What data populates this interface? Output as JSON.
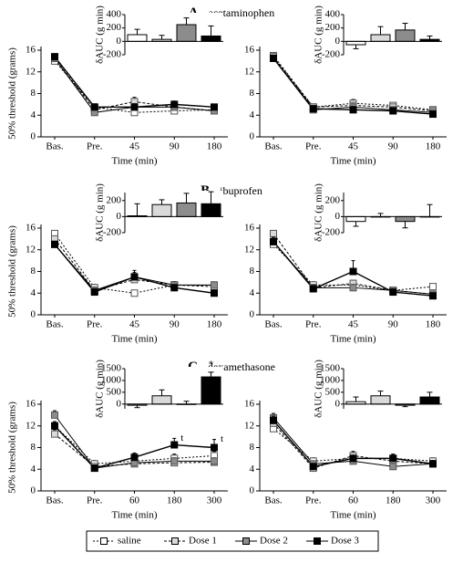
{
  "legend": [
    {
      "name": "saline",
      "color": "#ffffff",
      "dash": "2,2"
    },
    {
      "name": "Dose 1",
      "color": "#d9d9d9",
      "dash": "3,2"
    },
    {
      "name": "Dose 2",
      "color": "#8c8c8c",
      "dash": "none"
    },
    {
      "name": "Dose 3",
      "color": "#000000",
      "dash": "none"
    }
  ],
  "chart_data": [
    {
      "type": "line",
      "panel_label": "A",
      "title": "- acetaminophen",
      "xlabel": "Time (min)",
      "ylabel": "50% threshold (grams)",
      "categories": [
        "Bas.",
        "Pre.",
        "45",
        "90",
        "180"
      ],
      "ylim": [
        0,
        16
      ],
      "yticks": [
        0,
        4,
        8,
        12,
        16
      ],
      "series": [
        {
          "values": [
            14,
            5.5,
            4.5,
            4.8,
            5.0
          ],
          "errors": [
            0.5,
            0.6,
            0.6,
            0.5,
            0.5
          ]
        },
        {
          "values": [
            14.5,
            5,
            6.5,
            5.5,
            4.8
          ],
          "errors": [
            0.5,
            0.5,
            0.8,
            0.6,
            0.5
          ]
        },
        {
          "values": [
            14.5,
            4.5,
            5.5,
            5.5,
            4.8
          ],
          "errors": [
            0.5,
            0.5,
            0.6,
            0.5,
            0.5
          ]
        },
        {
          "values": [
            14.8,
            5.5,
            5.5,
            6,
            5.5
          ],
          "errors": [
            0.5,
            0.5,
            0.6,
            0.6,
            0.5
          ]
        }
      ],
      "inset": {
        "type": "bar",
        "ylabel": "δAUC (g min)",
        "ylim": [
          -200,
          400
        ],
        "yticks": [
          -200,
          0,
          200,
          400
        ],
        "values": [
          100,
          30,
          250,
          80
        ],
        "errors": [
          80,
          60,
          100,
          150
        ]
      }
    },
    {
      "type": "line",
      "xlabel": "Time (min)",
      "categories": [
        "Bas.",
        "Pre.",
        "45",
        "90",
        "180"
      ],
      "ylim": [
        0,
        16
      ],
      "yticks": [
        0,
        4,
        8,
        12,
        16
      ],
      "series": [
        {
          "values": [
            15,
            5.5,
            6.2,
            5.8,
            5
          ],
          "errors": [
            0.5,
            0.5,
            0.7,
            0.5,
            0.5
          ]
        },
        {
          "values": [
            14.8,
            5.5,
            5.8,
            5.5,
            4.8
          ],
          "errors": [
            0.5,
            0.5,
            0.6,
            0.5,
            0.5
          ]
        },
        {
          "values": [
            14.5,
            5,
            5.5,
            5,
            4.5
          ],
          "errors": [
            0.5,
            0.5,
            0.6,
            0.5,
            0.5
          ]
        },
        {
          "values": [
            14.5,
            5.2,
            5,
            4.8,
            4.2
          ],
          "errors": [
            0.5,
            0.5,
            0.6,
            0.5,
            0.5
          ]
        }
      ],
      "inset": {
        "type": "bar",
        "ylabel": "δAUC (g min)",
        "ylim": [
          -200,
          400
        ],
        "yticks": [
          -200,
          0,
          200,
          400
        ],
        "values": [
          -50,
          100,
          170,
          30
        ],
        "errors": [
          60,
          120,
          100,
          50
        ]
      }
    },
    {
      "type": "line",
      "panel_label": "B",
      "title": "- ibuprofen",
      "xlabel": "Time (min)",
      "ylabel": "50% threshold (grams)",
      "categories": [
        "Bas.",
        "Pre.",
        "45",
        "90",
        "180"
      ],
      "ylim": [
        0,
        16
      ],
      "yticks": [
        0,
        4,
        8,
        12,
        16
      ],
      "series": [
        {
          "values": [
            15,
            5,
            4,
            5.5,
            5.5
          ],
          "errors": [
            0.5,
            0.6,
            0.5,
            0.6,
            0.5
          ]
        },
        {
          "values": [
            14,
            4.5,
            6.5,
            5.5,
            5.2
          ],
          "errors": [
            0.5,
            0.6,
            0.8,
            0.6,
            0.5
          ]
        },
        {
          "values": [
            13,
            4.5,
            7,
            5.5,
            5.5
          ],
          "errors": [
            0.5,
            0.6,
            0.8,
            0.6,
            0.5
          ]
        },
        {
          "values": [
            13,
            4.2,
            7,
            5,
            4
          ],
          "errors": [
            0.5,
            0.6,
            1.2,
            0.6,
            0.5
          ]
        }
      ],
      "inset": {
        "type": "bar",
        "ylabel": "δAUC (g min)",
        "ylim": [
          -200,
          300
        ],
        "yticks": [
          -200,
          0,
          200
        ],
        "values": [
          10,
          150,
          170,
          160
        ],
        "errors": [
          150,
          60,
          120,
          150
        ]
      }
    },
    {
      "type": "line",
      "xlabel": "Time (min)",
      "categories": [
        "Bas.",
        "Pre.",
        "45",
        "90",
        "180"
      ],
      "ylim": [
        0,
        16
      ],
      "yticks": [
        0,
        4,
        8,
        12,
        16
      ],
      "series": [
        {
          "values": [
            13,
            5.5,
            5.5,
            4.5,
            5.2
          ],
          "errors": [
            0.5,
            0.6,
            0.6,
            0.5,
            0.5
          ]
        },
        {
          "values": [
            15,
            5,
            5.8,
            4.5,
            3.8
          ],
          "errors": [
            0.5,
            0.6,
            0.6,
            0.5,
            0.5
          ]
        },
        {
          "values": [
            13.5,
            5,
            5,
            4.5,
            3.8
          ],
          "errors": [
            0.5,
            0.5,
            0.6,
            0.5,
            0.5
          ]
        },
        {
          "values": [
            13.5,
            4.8,
            8,
            4.2,
            3.5
          ],
          "errors": [
            0.8,
            0.5,
            2.0,
            0.5,
            0.5
          ]
        }
      ],
      "inset": {
        "type": "bar",
        "ylabel": "δAUC (g min)",
        "ylim": [
          -200,
          300
        ],
        "yticks": [
          -200,
          0,
          200
        ],
        "values": [
          -60,
          0,
          -60,
          0
        ],
        "errors": [
          60,
          40,
          80,
          150
        ]
      }
    },
    {
      "type": "line",
      "panel_label": "C",
      "title": "- dexamethasone",
      "xlabel": "Time (min)",
      "ylabel": "50% threshold (grams)",
      "categories": [
        "Bas.",
        "Pre.",
        "60",
        "180",
        "300"
      ],
      "ylim": [
        0,
        16
      ],
      "yticks": [
        0,
        4,
        8,
        12,
        16
      ],
      "series": [
        {
          "values": [
            12,
            5,
            5.5,
            6,
            6.5
          ],
          "errors": [
            0.8,
            0.6,
            0.6,
            0.8,
            0.8
          ]
        },
        {
          "values": [
            10.5,
            4.5,
            5,
            5.2,
            5.3
          ],
          "errors": [
            0.8,
            0.5,
            0.6,
            0.6,
            0.6
          ]
        },
        {
          "values": [
            14,
            4.2,
            5.2,
            5.5,
            5.5
          ],
          "errors": [
            0.8,
            0.5,
            0.6,
            0.6,
            0.6
          ]
        },
        {
          "values": [
            12,
            4.2,
            6.2,
            8.5,
            8
          ],
          "errors": [
            0.8,
            0.5,
            0.8,
            1.2,
            1.5
          ],
          "point_labels": [
            null,
            null,
            null,
            "t",
            "t"
          ]
        }
      ],
      "inset": {
        "type": "bar",
        "ylabel": "δAUC (g min)",
        "ylim": [
          -200,
          1500
        ],
        "yticks": [
          0,
          500,
          1000,
          1500
        ],
        "values": [
          -50,
          350,
          0,
          1150
        ],
        "errors": [
          100,
          250,
          120,
          200
        ],
        "value_labels": [
          null,
          null,
          null,
          "*"
        ]
      }
    },
    {
      "type": "line",
      "xlabel": "Time (min)",
      "categories": [
        "Bas.",
        "Pre.",
        "60",
        "180",
        "300"
      ],
      "ylim": [
        0,
        16
      ],
      "yticks": [
        0,
        4,
        8,
        12,
        16
      ],
      "series": [
        {
          "values": [
            11.5,
            5.5,
            6,
            6,
            5.5
          ],
          "errors": [
            0.8,
            0.6,
            0.8,
            0.6,
            0.6
          ]
        },
        {
          "values": [
            12.5,
            4.2,
            6.5,
            5.5,
            5
          ],
          "errors": [
            0.8,
            0.5,
            0.8,
            0.6,
            0.6
          ]
        },
        {
          "values": [
            13.5,
            5,
            5.5,
            4.5,
            5
          ],
          "errors": [
            0.8,
            0.5,
            0.6,
            0.6,
            0.6
          ]
        },
        {
          "values": [
            13,
            4.5,
            6,
            6,
            5
          ],
          "errors": [
            0.8,
            0.5,
            0.6,
            0.8,
            0.6
          ]
        }
      ],
      "inset": {
        "type": "bar",
        "ylabel": "δAUC (g min)",
        "ylim": [
          -200,
          1500
        ],
        "yticks": [
          0,
          500,
          1000,
          1500
        ],
        "values": [
          100,
          350,
          -50,
          300
        ],
        "errors": [
          200,
          200,
          60,
          200
        ]
      }
    }
  ]
}
